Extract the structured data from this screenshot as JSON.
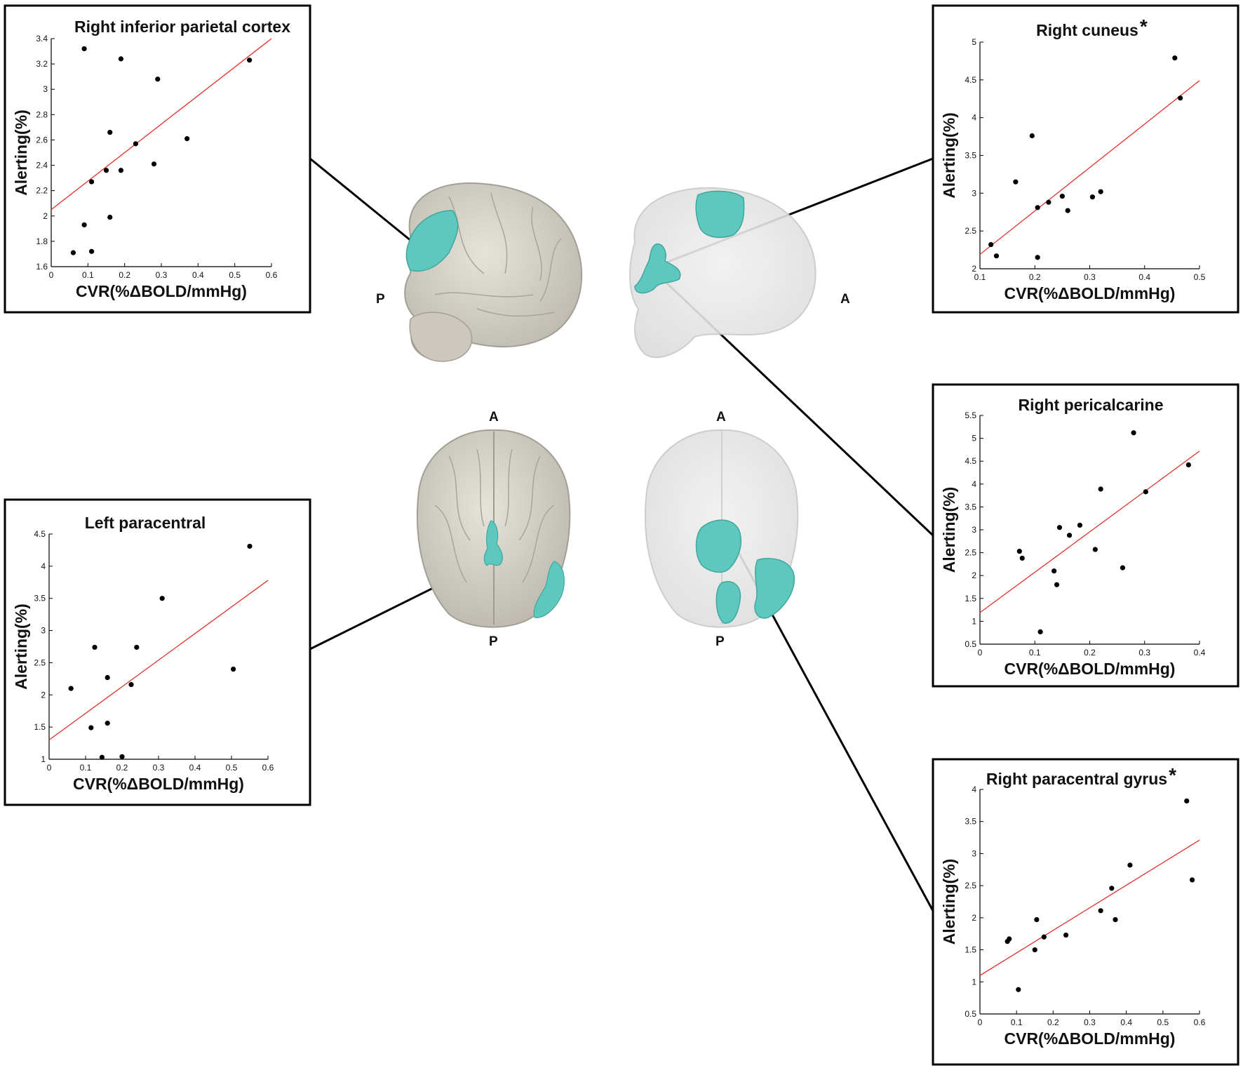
{
  "figure": {
    "orientation_labels": {
      "left_lateral_posterior": "P",
      "right_lateral_anterior": "A",
      "left_axial_top": "A",
      "left_axial_bottom": "P",
      "right_axial_top": "A",
      "right_axial_bottom": "P"
    },
    "significance_marker": "*",
    "colors": {
      "region": "#5ec8be",
      "brain": "#d6d2c8",
      "fit_line": "#e0302a",
      "points": "#000000"
    }
  },
  "chart_data": [
    {
      "id": "rip",
      "type": "scatter",
      "title": "Right inferior parietal cortex",
      "significant": false,
      "xlabel": "CVR(%ΔBOLD/mmHg)",
      "ylabel": "Alerting(%)",
      "xlim": [
        0,
        0.6
      ],
      "ylim": [
        1.6,
        3.4
      ],
      "xticks": [
        "0",
        "0.1",
        "0.2",
        "0.3",
        "0.4",
        "0.5",
        "0.6"
      ],
      "yticks": [
        "1.6",
        "1.8",
        "2",
        "2.2",
        "2.4",
        "2.6",
        "2.8",
        "3",
        "3.2",
        "3.4"
      ],
      "points": [
        [
          0.06,
          1.71
        ],
        [
          0.09,
          1.93
        ],
        [
          0.09,
          3.32
        ],
        [
          0.11,
          2.27
        ],
        [
          0.11,
          1.72
        ],
        [
          0.15,
          2.36
        ],
        [
          0.16,
          2.66
        ],
        [
          0.16,
          1.99
        ],
        [
          0.19,
          3.24
        ],
        [
          0.19,
          2.36
        ],
        [
          0.23,
          2.57
        ],
        [
          0.28,
          2.41
        ],
        [
          0.29,
          3.08
        ],
        [
          0.37,
          2.61
        ],
        [
          0.54,
          3.23
        ]
      ],
      "fit": [
        [
          0,
          2.05
        ],
        [
          0.6,
          3.4
        ]
      ]
    },
    {
      "id": "rcun",
      "type": "scatter",
      "title": "Right cuneus",
      "significant": true,
      "xlabel": "CVR(%ΔBOLD/mmHg)",
      "ylabel": "Alerting(%)",
      "xlim": [
        0.1,
        0.5
      ],
      "ylim": [
        2,
        5
      ],
      "xticks": [
        "0.1",
        "0.2",
        "0.3",
        "0.4",
        "0.5"
      ],
      "yticks": [
        "2",
        "2.5",
        "3",
        "3.5",
        "4",
        "4.5",
        "5"
      ],
      "points": [
        [
          0.12,
          2.32
        ],
        [
          0.13,
          2.17
        ],
        [
          0.165,
          3.15
        ],
        [
          0.195,
          3.76
        ],
        [
          0.205,
          2.81
        ],
        [
          0.205,
          2.15
        ],
        [
          0.225,
          2.88
        ],
        [
          0.25,
          2.96
        ],
        [
          0.26,
          2.77
        ],
        [
          0.305,
          2.95
        ],
        [
          0.32,
          3.02
        ],
        [
          0.455,
          4.79
        ],
        [
          0.465,
          4.26
        ]
      ],
      "fit": [
        [
          0.1,
          2.19
        ],
        [
          0.5,
          4.49
        ]
      ]
    },
    {
      "id": "rperi",
      "type": "scatter",
      "title": "Right pericalcarine",
      "significant": false,
      "xlabel": "CVR(%ΔBOLD/mmHg)",
      "ylabel": "Alerting(%)",
      "xlim": [
        0,
        0.4
      ],
      "ylim": [
        0.5,
        5.5
      ],
      "xticks": [
        "0",
        "0.1",
        "0.2",
        "0.3",
        "0.4"
      ],
      "yticks": [
        "0.5",
        "1",
        "1.5",
        "2",
        "2.5",
        "3",
        "3.5",
        "4",
        "4.5",
        "5",
        "5.5"
      ],
      "points": [
        [
          0.072,
          2.53
        ],
        [
          0.077,
          2.38
        ],
        [
          0.11,
          0.77
        ],
        [
          0.135,
          2.1
        ],
        [
          0.14,
          1.8
        ],
        [
          0.145,
          3.05
        ],
        [
          0.163,
          2.88
        ],
        [
          0.182,
          3.1
        ],
        [
          0.21,
          2.57
        ],
        [
          0.22,
          3.89
        ],
        [
          0.26,
          2.17
        ],
        [
          0.28,
          5.12
        ],
        [
          0.302,
          3.83
        ],
        [
          0.38,
          4.42
        ]
      ],
      "fit": [
        [
          0,
          1.19
        ],
        [
          0.4,
          4.72
        ]
      ]
    },
    {
      "id": "lpara",
      "type": "scatter",
      "title": "Left paracentral",
      "significant": false,
      "xlabel": "CVR(%ΔBOLD/mmHg)",
      "ylabel": "Alerting(%)",
      "xlim": [
        0,
        0.6
      ],
      "ylim": [
        1,
        4.5
      ],
      "xticks": [
        "0",
        "0.1",
        "0.2",
        "0.3",
        "0.4",
        "0.5",
        "0.6"
      ],
      "yticks": [
        "1",
        "1.5",
        "2",
        "2.5",
        "3",
        "3.5",
        "4",
        "4.5"
      ],
      "points": [
        [
          0.06,
          2.1
        ],
        [
          0.115,
          1.49
        ],
        [
          0.125,
          2.74
        ],
        [
          0.145,
          1.03
        ],
        [
          0.16,
          2.27
        ],
        [
          0.16,
          1.56
        ],
        [
          0.2,
          1.04
        ],
        [
          0.225,
          2.16
        ],
        [
          0.24,
          2.74
        ],
        [
          0.31,
          3.5
        ],
        [
          0.505,
          2.4
        ],
        [
          0.55,
          4.31
        ]
      ],
      "fit": [
        [
          0,
          1.3
        ],
        [
          0.6,
          3.78
        ]
      ]
    },
    {
      "id": "rparag",
      "type": "scatter",
      "title": "Right paracentral gyrus",
      "significant": true,
      "xlabel": "CVR(%ΔBOLD/mmHg)",
      "ylabel": "Alerting(%)",
      "xlim": [
        0,
        0.6
      ],
      "ylim": [
        0.5,
        4
      ],
      "xticks": [
        "0",
        "0.1",
        "0.2",
        "0.3",
        "0.4",
        "0.5",
        "0.6"
      ],
      "yticks": [
        "0.5",
        "1",
        "1.5",
        "2",
        "2.5",
        "3",
        "3.5",
        "4"
      ],
      "points": [
        [
          0.075,
          1.63
        ],
        [
          0.08,
          1.67
        ],
        [
          0.105,
          0.88
        ],
        [
          0.15,
          1.5
        ],
        [
          0.155,
          1.97
        ],
        [
          0.175,
          1.7
        ],
        [
          0.235,
          1.73
        ],
        [
          0.33,
          2.11
        ],
        [
          0.36,
          2.46
        ],
        [
          0.37,
          1.97
        ],
        [
          0.41,
          2.82
        ],
        [
          0.565,
          3.82
        ],
        [
          0.58,
          2.59
        ]
      ],
      "fit": [
        [
          0,
          1.1
        ],
        [
          0.6,
          3.21
        ]
      ]
    }
  ]
}
